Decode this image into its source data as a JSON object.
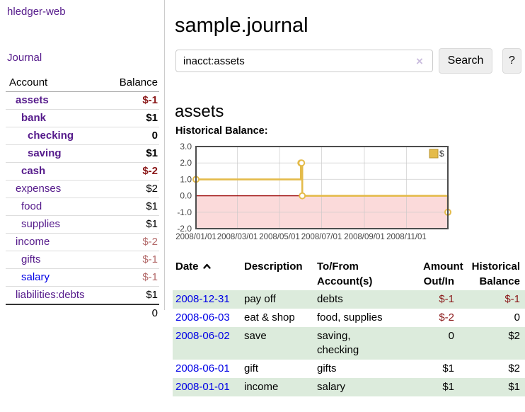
{
  "app": {
    "brand": "hledger-web",
    "nav_journal": "Journal"
  },
  "sidebar": {
    "accounts": {
      "headers": {
        "account": "Account",
        "balance": "Balance"
      },
      "rows": [
        {
          "name": "assets",
          "balance": "$-1"
        },
        {
          "name": "bank",
          "balance": "$1"
        },
        {
          "name": "checking",
          "balance": "0"
        },
        {
          "name": "saving",
          "balance": "$1"
        },
        {
          "name": "cash",
          "balance": "$-2"
        },
        {
          "name": "expenses",
          "balance": "$2"
        },
        {
          "name": "food",
          "balance": "$1"
        },
        {
          "name": "supplies",
          "balance": "$1"
        },
        {
          "name": "income",
          "balance": "$-2"
        },
        {
          "name": "gifts",
          "balance": "$-1"
        },
        {
          "name": "salary",
          "balance": "$-1"
        },
        {
          "name": "liabilities:debts",
          "balance": "$1"
        }
      ],
      "total": "0"
    }
  },
  "main": {
    "title": "sample.journal",
    "search": {
      "query": "inacct:assets",
      "clear_icon": "×",
      "search_button": "Search",
      "help_button": "?"
    },
    "account_heading": "assets",
    "chart_title": "Historical Balance:",
    "register": {
      "headers": {
        "date": "Date",
        "description": "Description",
        "accounts": "To/From\nAccount(s)",
        "amount": "Amount\nOut/In",
        "balance": "Historical\nBalance"
      },
      "rows": [
        {
          "date": "2008-12-31",
          "description": "pay off",
          "accounts": "debts",
          "amount": "$-1",
          "balance": "$-1"
        },
        {
          "date": "2008-06-03",
          "description": "eat & shop",
          "accounts": "food, supplies",
          "amount": "$-2",
          "balance": "0"
        },
        {
          "date": "2008-06-02",
          "description": "save",
          "accounts": "saving,\nchecking",
          "amount": "0",
          "balance": "$2"
        },
        {
          "date": "2008-06-01",
          "description": "gift",
          "accounts": "gifts",
          "amount": "$1",
          "balance": "$2"
        },
        {
          "date": "2008-01-01",
          "description": "income",
          "accounts": "salary",
          "amount": "$1",
          "balance": "$1"
        }
      ]
    }
  },
  "chart_data": {
    "type": "line",
    "step": true,
    "title": "Historical Balance",
    "legend_position": "top-right",
    "grid": true,
    "ylim": [
      -2,
      3
    ],
    "yticks": [
      "3.0",
      "2.0",
      "1.0",
      "0.0",
      "-1.0",
      "-2.0"
    ],
    "xrange": [
      "2008-01-01",
      "2008-12-31"
    ],
    "xticks": [
      "2008/01/01",
      "2008/03/01",
      "2008/05/01",
      "2008/07/01",
      "2008/09/01",
      "2008/11/01"
    ],
    "series": [
      {
        "name": "$",
        "points": [
          {
            "date": "2008-01-01",
            "value": 1
          },
          {
            "date": "2008-06-01",
            "value": 2
          },
          {
            "date": "2008-06-02",
            "value": 2
          },
          {
            "date": "2008-06-03",
            "value": 0
          },
          {
            "date": "2008-12-31",
            "value": -1
          }
        ]
      }
    ],
    "colors": {
      "line": "#e4bb4a",
      "negative_fill": "#fbdada",
      "zero_line": "#990000",
      "grid": "#c8c8c8",
      "frame": "#4d4d4d",
      "legend_border": "#b89530",
      "tick_label": "#444444"
    }
  }
}
